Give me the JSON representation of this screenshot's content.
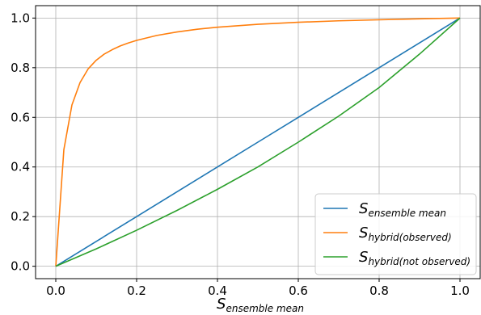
{
  "chart_data": {
    "type": "line",
    "xlabel": {
      "base": "S",
      "sub": "ensemble mean"
    },
    "ylabel": "",
    "xlim": [
      -0.05,
      1.05
    ],
    "ylim": [
      -0.05,
      1.05
    ],
    "xticks": [
      0.0,
      0.2,
      0.4,
      0.6,
      0.8,
      1.0
    ],
    "xtick_labels": [
      "0.0",
      "0.2",
      "0.4",
      "0.6",
      "0.8",
      "1.0"
    ],
    "yticks": [
      0.0,
      0.2,
      0.4,
      0.6,
      0.8,
      1.0
    ],
    "ytick_labels": [
      "0.0",
      "0.2",
      "0.4",
      "0.6",
      "0.8",
      "1.0"
    ],
    "grid": true,
    "legend_position": "lower-right",
    "series": [
      {
        "name": {
          "base": "S",
          "sub": "ensemble mean"
        },
        "color": "#1f77b4",
        "x": [
          0.0,
          0.1,
          0.2,
          0.3,
          0.4,
          0.5,
          0.6,
          0.7,
          0.8,
          0.9,
          1.0
        ],
        "y": [
          0.0,
          0.1,
          0.2,
          0.3,
          0.4,
          0.5,
          0.6,
          0.7,
          0.8,
          0.9,
          1.0
        ]
      },
      {
        "name": {
          "base": "S",
          "sub": "hybrid(observed)"
        },
        "color": "#ff7f0e",
        "x": [
          0.0,
          0.02,
          0.04,
          0.06,
          0.08,
          0.1,
          0.12,
          0.14,
          0.16,
          0.18,
          0.2,
          0.25,
          0.3,
          0.35,
          0.4,
          0.5,
          0.6,
          0.7,
          0.8,
          0.9,
          1.0
        ],
        "y": [
          0.0,
          0.47,
          0.65,
          0.74,
          0.795,
          0.83,
          0.855,
          0.873,
          0.888,
          0.9,
          0.91,
          0.93,
          0.944,
          0.955,
          0.963,
          0.975,
          0.983,
          0.989,
          0.993,
          0.997,
          1.0
        ]
      },
      {
        "name": {
          "base": "S",
          "sub": "hybrid(not observed)"
        },
        "color": "#2ca02c",
        "x": [
          0.0,
          0.1,
          0.2,
          0.3,
          0.4,
          0.5,
          0.6,
          0.7,
          0.8,
          0.9,
          1.0
        ],
        "y": [
          0.0,
          0.07,
          0.145,
          0.225,
          0.31,
          0.4,
          0.5,
          0.605,
          0.72,
          0.855,
          1.0
        ]
      }
    ]
  }
}
